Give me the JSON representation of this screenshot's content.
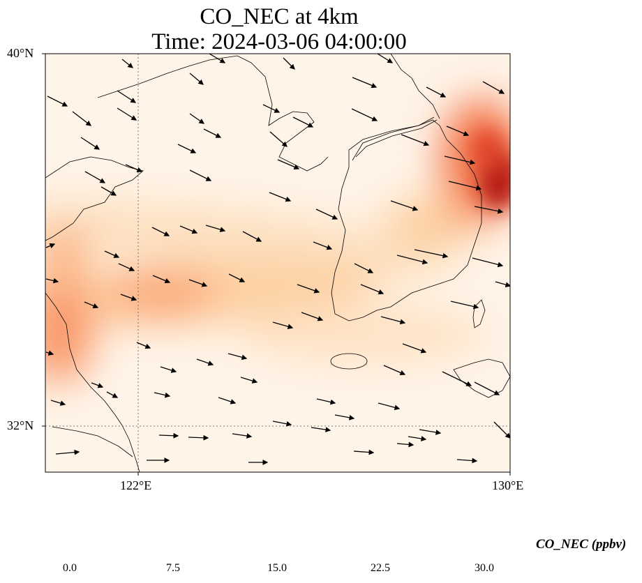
{
  "title": {
    "line1": "CO_NEC at 4km",
    "line2": "Time: 2024-03-06 04:00:00"
  },
  "axes": {
    "lat_labels": [
      "40°N",
      "32°N"
    ],
    "lon_labels": [
      "122°E",
      "130°E"
    ],
    "extent": {
      "lon": [
        120,
        130
      ],
      "lat": [
        31,
        40
      ]
    },
    "gridlines": {
      "lon": [
        122,
        130
      ],
      "lat": [
        32,
        40
      ]
    }
  },
  "colorbar": {
    "label": "CO_NEC (ppbv)",
    "ticks": [
      "0.0",
      "7.5",
      "15.0",
      "22.5",
      "30.0"
    ],
    "range": [
      0,
      30
    ],
    "extend": "both",
    "colormap": [
      "#fff5eb",
      "#fdd49e",
      "#fc8d59",
      "#d7301f",
      "#b30000",
      "#7f0000"
    ]
  }
}
